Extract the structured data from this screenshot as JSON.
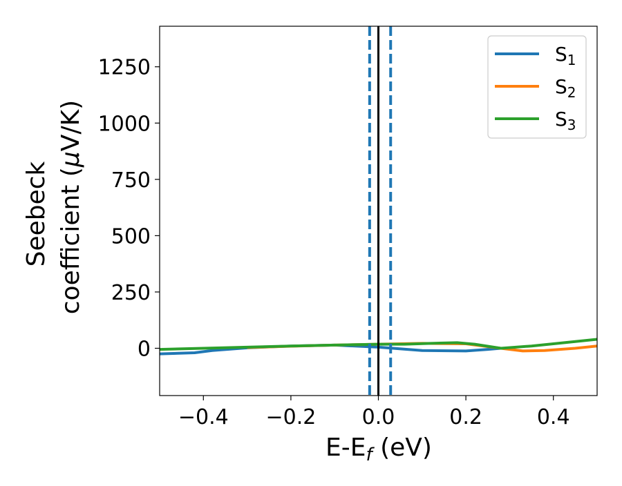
{
  "chart_data": {
    "type": "line",
    "title": "",
    "xlabel": "E-E",
    "xlabel_sub": "f",
    "xlabel_unit": " (eV)",
    "ylabel_line1": "Seebeck",
    "ylabel_line2_text": "coefficient  (",
    "ylabel_line2_mu": "μ",
    "ylabel_line2_unit": "V/K)",
    "xlim": [
      -0.5,
      0.5
    ],
    "ylim": [
      -210,
      1430
    ],
    "xticks": [
      -0.4,
      -0.2,
      0.0,
      0.2,
      0.4
    ],
    "xtick_labels": [
      "−0.4",
      "−0.2",
      "0.0",
      "0.2",
      "0.4"
    ],
    "yticks": [
      0,
      250,
      500,
      750,
      1000,
      1250
    ],
    "ytick_labels": [
      "0",
      "250",
      "500",
      "750",
      "1000",
      "1250"
    ],
    "grid": false,
    "legend_position": "top-right",
    "vertical_lines": [
      {
        "x": -0.02,
        "style": "dashed",
        "color": "#1f77b4"
      },
      {
        "x": 0.0,
        "style": "solid",
        "color": "#000000"
      },
      {
        "x": 0.028,
        "style": "dashed",
        "color": "#1f77b4"
      }
    ],
    "series": [
      {
        "name": "S",
        "sub": "1",
        "color": "#1f77b4",
        "x": [
          -0.5,
          -0.42,
          -0.38,
          -0.3,
          -0.2,
          -0.1,
          0.0,
          0.1,
          0.2,
          0.25,
          0.28
        ],
        "y": [
          -25,
          -20,
          -10,
          2,
          10,
          14,
          5,
          -10,
          -12,
          -5,
          0
        ]
      },
      {
        "name": "S",
        "sub": "2",
        "color": "#ff7f0e",
        "x": [
          -0.3,
          -0.2,
          -0.1,
          0.0,
          0.1,
          0.2,
          0.28,
          0.33,
          0.38,
          0.45,
          0.5
        ],
        "y": [
          3,
          9,
          14,
          18,
          22,
          20,
          0,
          -12,
          -10,
          0,
          10
        ]
      },
      {
        "name": "S",
        "sub": "3",
        "color": "#2ca02c",
        "x": [
          -0.5,
          -0.4,
          -0.3,
          -0.2,
          -0.1,
          0.0,
          0.06,
          0.12,
          0.18,
          0.22,
          0.28,
          0.35,
          0.45,
          0.5
        ],
        "y": [
          -5,
          0,
          5,
          10,
          14,
          18,
          18,
          22,
          25,
          18,
          0,
          10,
          30,
          40
        ]
      }
    ]
  }
}
